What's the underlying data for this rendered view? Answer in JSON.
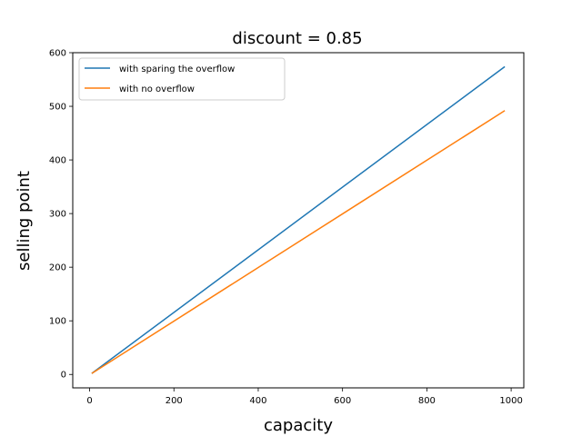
{
  "chart_data": {
    "type": "line",
    "title": "discount = 0.85",
    "xlabel": "capacity",
    "ylabel": "selling point",
    "xlim": [
      -40,
      1030
    ],
    "ylim": [
      -25,
      600
    ],
    "xticks": [
      0,
      200,
      400,
      600,
      800,
      1000
    ],
    "yticks": [
      0,
      100,
      200,
      300,
      400,
      500,
      600
    ],
    "grid": false,
    "legend_position": "top-left",
    "series": [
      {
        "name": "with sparing the overflow",
        "color": "#1f77b4",
        "x": [
          5,
          985
        ],
        "y": [
          2,
          574
        ]
      },
      {
        "name": "with no overflow",
        "color": "#ff7f0e",
        "x": [
          5,
          985
        ],
        "y": [
          2,
          492
        ]
      }
    ]
  }
}
